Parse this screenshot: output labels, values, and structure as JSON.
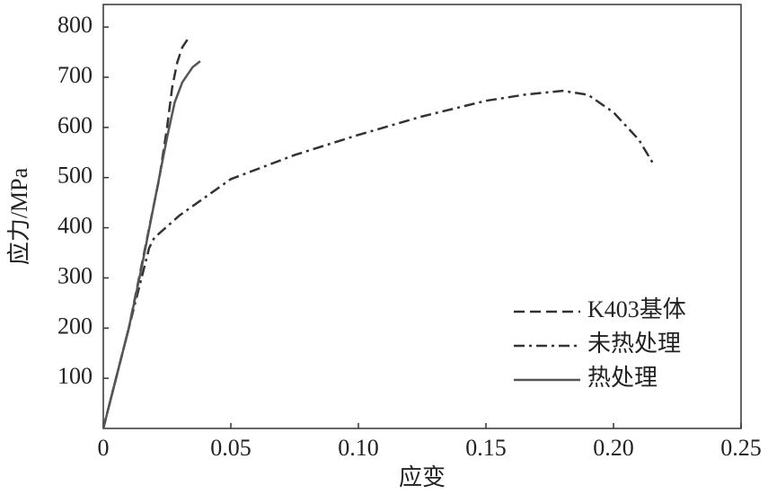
{
  "chart_data": {
    "type": "line",
    "x_label": "应变",
    "y_label": "应力/MPa",
    "xlim": [
      0,
      0.25
    ],
    "ylim": [
      0,
      845
    ],
    "xticks": [
      0,
      0.05,
      {
        "value": 0.1,
        "label": "0.10"
      },
      0.15,
      {
        "value": 0.2,
        "label": "0.20"
      },
      0.25
    ],
    "yticks": [
      100,
      200,
      300,
      400,
      500,
      600,
      700,
      800
    ],
    "legend": "lower right",
    "series": [
      {
        "name": "K403基体",
        "color": "#333333",
        "linestyle": "dashed",
        "x": [
          0,
          0.005,
          0.01,
          0.014,
          0.018,
          0.022,
          0.025,
          0.027,
          0.029,
          0.031,
          0.033,
          0.034
        ],
        "values": [
          0,
          100,
          200,
          300,
          400,
          500,
          600,
          680,
          730,
          760,
          775,
          772
        ]
      },
      {
        "name": "未热处理",
        "color": "#333333",
        "linestyle": "dashdot",
        "x": [
          0,
          0.005,
          0.01,
          0.015,
          0.018,
          0.02,
          0.03,
          0.05,
          0.075,
          0.1,
          0.125,
          0.15,
          0.165,
          0.18,
          0.19,
          0.2,
          0.21,
          0.216
        ],
        "values": [
          0,
          100,
          200,
          300,
          360,
          380,
          425,
          497,
          545,
          585,
          622,
          653,
          665,
          673,
          665,
          630,
          575,
          524
        ]
      },
      {
        "name": "热处理",
        "color": "#555555",
        "linestyle": "solid",
        "x": [
          0,
          0.005,
          0.01,
          0.015,
          0.02,
          0.025,
          0.028,
          0.031,
          0.035,
          0.038
        ],
        "values": [
          0,
          100,
          200,
          320,
          450,
          580,
          650,
          690,
          720,
          732
        ]
      }
    ]
  }
}
